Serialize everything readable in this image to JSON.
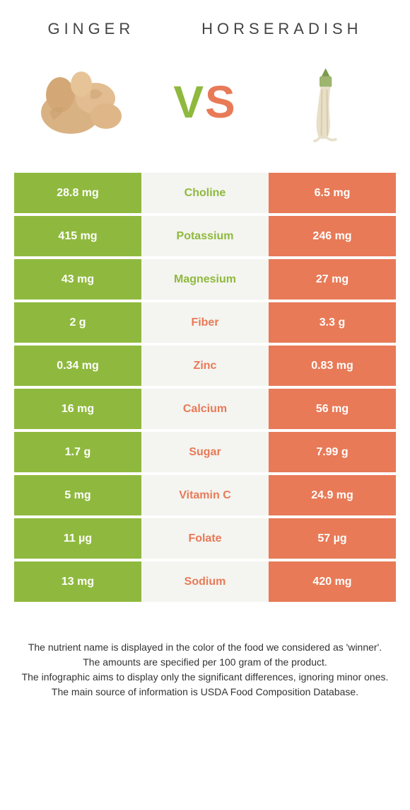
{
  "comparison": {
    "left_name": "Ginger",
    "right_name": "Horseradish",
    "vs_label_v": "V",
    "vs_label_s": "S",
    "colors": {
      "left": "#8fb93e",
      "right": "#e87a57",
      "mid_bg": "#f4f4f0",
      "value_text": "#ffffff"
    },
    "rows": [
      {
        "nutrient": "Choline",
        "left": "28.8 mg",
        "right": "6.5 mg",
        "winner": "left"
      },
      {
        "nutrient": "Potassium",
        "left": "415 mg",
        "right": "246 mg",
        "winner": "left"
      },
      {
        "nutrient": "Magnesium",
        "left": "43 mg",
        "right": "27 mg",
        "winner": "left"
      },
      {
        "nutrient": "Fiber",
        "left": "2 g",
        "right": "3.3 g",
        "winner": "right"
      },
      {
        "nutrient": "Zinc",
        "left": "0.34 mg",
        "right": "0.83 mg",
        "winner": "right"
      },
      {
        "nutrient": "Calcium",
        "left": "16 mg",
        "right": "56 mg",
        "winner": "right"
      },
      {
        "nutrient": "Sugar",
        "left": "1.7 g",
        "right": "7.99 g",
        "winner": "right"
      },
      {
        "nutrient": "Vitamin C",
        "left": "5 mg",
        "right": "24.9 mg",
        "winner": "right"
      },
      {
        "nutrient": "Folate",
        "left": "11 µg",
        "right": "57 µg",
        "winner": "right"
      },
      {
        "nutrient": "Sodium",
        "left": "13 mg",
        "right": "420 mg",
        "winner": "right"
      }
    ],
    "footnote_lines": [
      "The nutrient name is displayed in the color of the food we considered as 'winner'.",
      "The amounts are specified per 100 gram of the product.",
      "The infographic aims to display only the significant differences, ignoring minor ones.",
      "The main source of information is USDA Food Composition Database."
    ]
  }
}
